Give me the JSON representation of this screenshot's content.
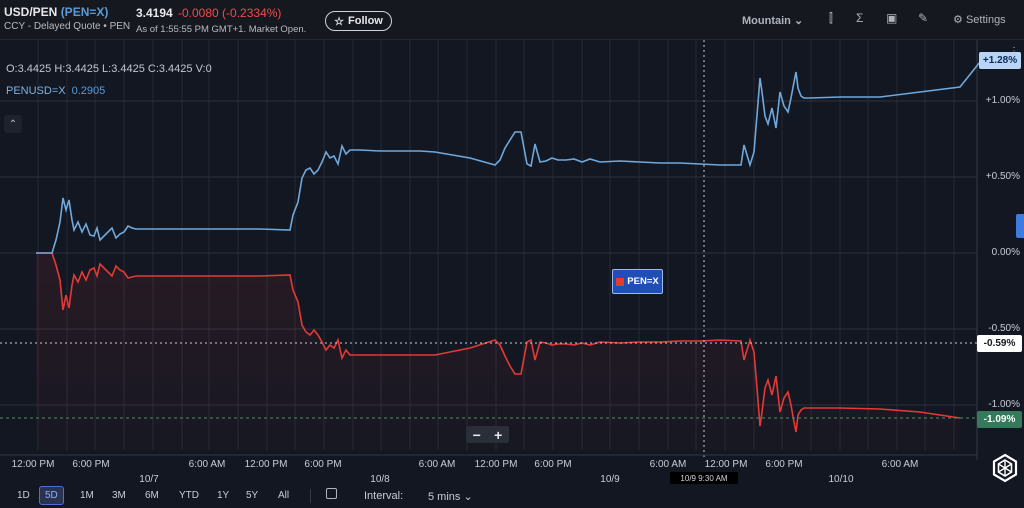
{
  "header": {
    "symbol": "USD/PEN",
    "ticker_paren": "(PEN=X)",
    "subtitle": "CCY - Delayed Quote • PEN",
    "price": "3.4194",
    "change": "-0.0080",
    "change_pct": "(-0.2334%)",
    "as_of": "As of 1:55:55 PM GMT+1. Market Open.",
    "follow_label": "Follow",
    "chart_style": "Mountain",
    "settings_label": "Settings"
  },
  "legend": {
    "ohlc": "O:3.4425  H:3.4425  L:3.4425  C:3.4425  V:0",
    "compare_symbol": "PENUSD=X",
    "compare_value": "0.2905"
  },
  "overlay": {
    "pen_tag": "PEN=X",
    "zoom_out": "−",
    "zoom_in": "+"
  },
  "axis": {
    "y_ticks": [
      "+1.00%",
      "+0.50%",
      "0.00%",
      "-0.50%",
      "-1.00%"
    ],
    "price_labels": {
      "blue": "+1.28%",
      "white": "-0.59%",
      "green": "-1.09%"
    },
    "x_ticks": [
      "12:00 PM",
      "6:00 PM",
      "6:00 AM",
      "12:00 PM",
      "6:00 PM",
      "6:00 AM",
      "12:00 PM",
      "6:00 PM",
      "6:00 AM",
      "12:00 PM",
      "6:00 PM",
      "6:00 AM"
    ],
    "x_days": [
      "10/7",
      "10/8",
      "10/9",
      "10/10"
    ],
    "crosshair_label": "10/9 9:30 AM"
  },
  "bottom": {
    "ranges": [
      "1D",
      "5D",
      "1M",
      "3M",
      "6M",
      "YTD",
      "1Y",
      "5Y",
      "All"
    ],
    "active_range": "5D",
    "interval_label": "Interval:",
    "interval_value": "5 mins"
  },
  "colors": {
    "background": "#131722",
    "blue_series": "#6fa8dc",
    "red_series": "#e53935",
    "accent": "#2962ff"
  }
}
